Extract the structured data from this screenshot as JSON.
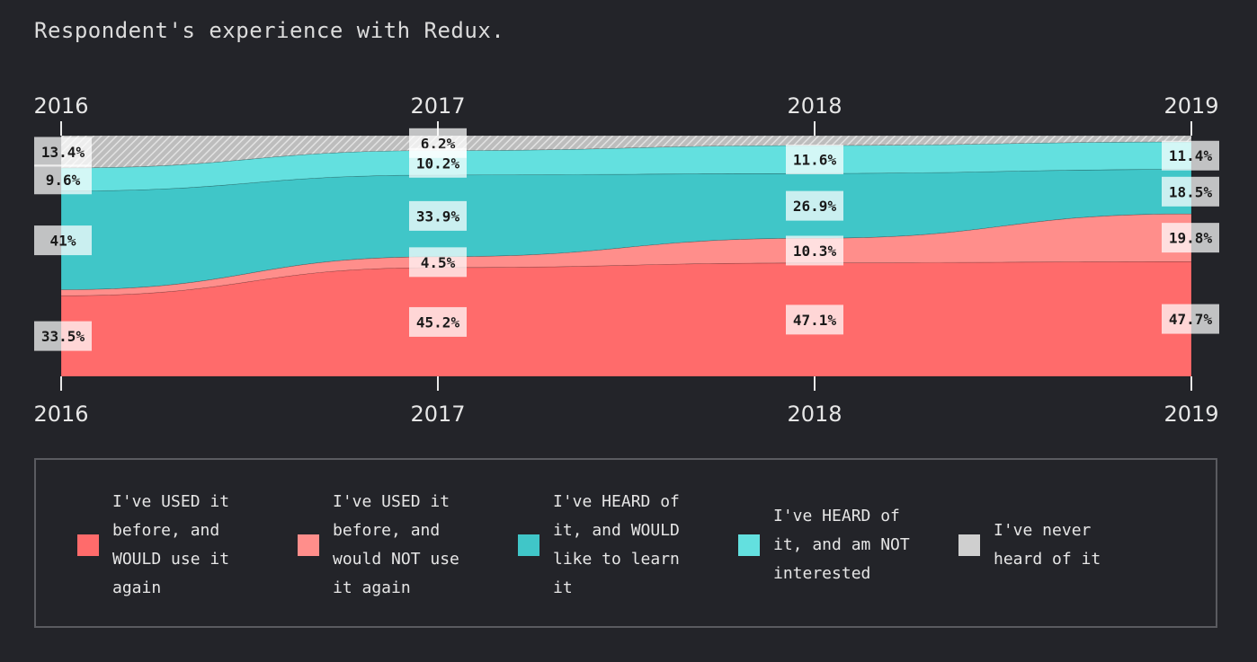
{
  "title": "Respondent's experience with Redux.",
  "colors": {
    "background": "#232429",
    "would_use": "#ff6b6b",
    "would_not_use": "#ff8e8b",
    "would_learn": "#40c6c8",
    "not_interested": "#63e0df",
    "never_heard": "#cfcfcf",
    "axis": "#e8e8e8",
    "label_bg": "#ffffff"
  },
  "legend": {
    "items": [
      {
        "key": "would_use",
        "label": "I've USED it before, and WOULD use it again"
      },
      {
        "key": "would_not_use",
        "label": "I've USED it before, and would NOT use it again"
      },
      {
        "key": "would_learn",
        "label": "I've HEARD of it, and WOULD like to learn it"
      },
      {
        "key": "not_interested",
        "label": "I've HEARD of it, and am NOT interested"
      },
      {
        "key": "never_heard",
        "label": "I've never heard of it"
      }
    ]
  },
  "chart_data": {
    "type": "area",
    "stacked": true,
    "normalized": true,
    "title": "Respondent's experience with Redux.",
    "categories": [
      "2016",
      "2017",
      "2018",
      "2019"
    ],
    "top_axis_labels": [
      "2016",
      "2017",
      "2018",
      "2019"
    ],
    "bottom_axis_labels": [
      "2016",
      "2017",
      "2018",
      "2019"
    ],
    "ylim": [
      0,
      100
    ],
    "series": [
      {
        "key": "would_use",
        "name": "I've USED it before, and WOULD use it again",
        "values": [
          33.5,
          45.2,
          47.1,
          47.7
        ],
        "labels": [
          "33.5%",
          "45.2%",
          "47.1%",
          "47.7%"
        ]
      },
      {
        "key": "would_not_use",
        "name": "I've USED it before, and would NOT use it again",
        "values": [
          2.5,
          4.5,
          10.3,
          19.8
        ],
        "labels": [
          "",
          "4.5%",
          "10.3%",
          "19.8%"
        ]
      },
      {
        "key": "would_learn",
        "name": "I've HEARD of it, and WOULD like to learn it",
        "values": [
          41,
          33.9,
          26.9,
          18.5
        ],
        "labels": [
          "41%",
          "33.9%",
          "26.9%",
          "18.5%"
        ]
      },
      {
        "key": "not_interested",
        "name": "I've HEARD of it, and am NOT interested",
        "values": [
          9.6,
          10.2,
          11.6,
          11.4
        ],
        "labels": [
          "9.6%",
          "10.2%",
          "11.6%",
          "11.4%"
        ]
      },
      {
        "key": "never_heard",
        "name": "I've never heard of it",
        "values": [
          13.4,
          6.2,
          4.1,
          2.6
        ],
        "labels": [
          "13.4%",
          "6.2%",
          "",
          ""
        ]
      }
    ]
  }
}
